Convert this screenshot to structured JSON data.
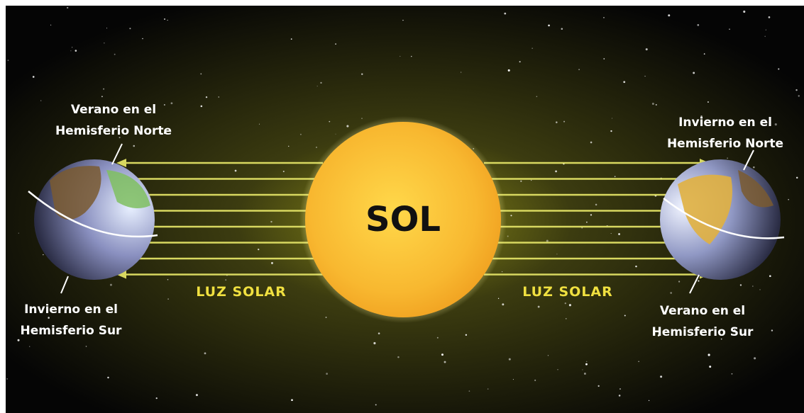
{
  "sun": {
    "label": "SOL"
  },
  "light_labels": [
    "LUZ SOLAR",
    "LUZ SOLAR"
  ],
  "left_earth": {
    "top_label": [
      "Verano en el",
      "Hemisferio Norte"
    ],
    "bottom_label": [
      "Invierno en el",
      "Hemisferio Sur"
    ]
  },
  "right_earth": {
    "top_label": [
      "Invierno en el",
      "Hemisferio Norte"
    ],
    "bottom_label": [
      "Verano en el",
      "Hemisferio Sur"
    ]
  }
}
